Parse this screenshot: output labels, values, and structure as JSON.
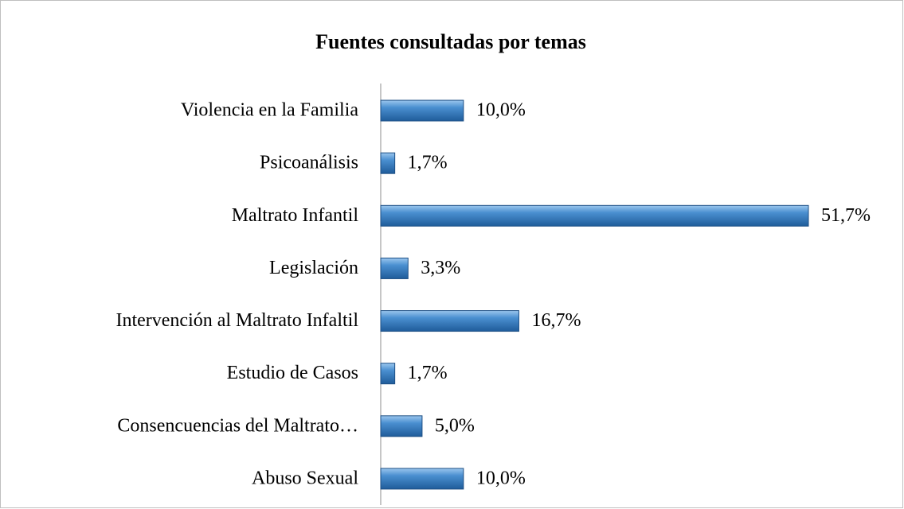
{
  "chart_data": {
    "type": "barh",
    "title": "Fuentes consultadas por temas",
    "categories": [
      "Violencia en la Familia",
      "Psicoanálisis",
      "Maltrato Infantil",
      "Legislación",
      "Intervención al Maltrato Infaltil",
      "Estudio de Casos",
      "Consencuencias del Maltrato…",
      "Abuso Sexual"
    ],
    "values": [
      10.0,
      1.7,
      51.7,
      3.3,
      16.7,
      1.7,
      5.0,
      10.0
    ],
    "value_labels": [
      "10,0%",
      "1,7%",
      "51,7%",
      "3,3%",
      "16,7%",
      "1,7%",
      "5,0%",
      "10,0%"
    ],
    "color": "#4a8fd0"
  }
}
